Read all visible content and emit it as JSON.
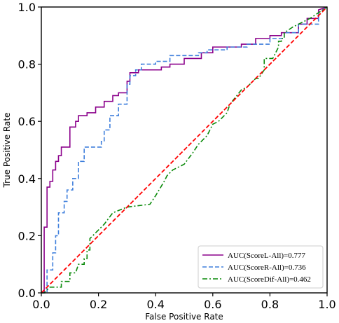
{
  "chart_data": {
    "type": "line",
    "xlabel": "False Positive Rate",
    "ylabel": "True Positive Rate",
    "xlim": [
      0.0,
      1.0
    ],
    "ylim": [
      0.0,
      1.0
    ],
    "xticks": [
      0.0,
      0.2,
      0.4,
      0.6,
      0.8,
      1.0
    ],
    "yticks": [
      0.0,
      0.2,
      0.4,
      0.6,
      0.8,
      1.0
    ],
    "xtick_labels": [
      "0.0",
      "0.2",
      "0.4",
      "0.6",
      "0.8",
      "1.0"
    ],
    "ytick_labels": [
      "0.0",
      "0.2",
      "0.4",
      "0.6",
      "0.8",
      "1.0"
    ],
    "grid": false,
    "legend_position": "lower-right",
    "series": [
      {
        "name": "AUC(ScoreL-All)=0.777",
        "color": "#8b008b",
        "dash": "solid",
        "x": [
          0.0,
          0.01,
          0.01,
          0.02,
          0.02,
          0.03,
          0.03,
          0.04,
          0.04,
          0.05,
          0.05,
          0.06,
          0.06,
          0.07,
          0.07,
          0.1,
          0.1,
          0.12,
          0.12,
          0.13,
          0.13,
          0.16,
          0.16,
          0.19,
          0.19,
          0.22,
          0.22,
          0.25,
          0.25,
          0.27,
          0.27,
          0.3,
          0.3,
          0.31,
          0.31,
          0.34,
          0.34,
          0.42,
          0.42,
          0.45,
          0.45,
          0.5,
          0.5,
          0.56,
          0.56,
          0.6,
          0.6,
          0.7,
          0.7,
          0.75,
          0.75,
          0.8,
          0.8,
          0.84,
          0.84,
          0.9,
          0.9,
          0.93,
          0.93,
          0.97,
          0.97,
          1.0
        ],
        "y": [
          0.0,
          0.0,
          0.23,
          0.23,
          0.37,
          0.37,
          0.39,
          0.39,
          0.43,
          0.43,
          0.46,
          0.46,
          0.48,
          0.48,
          0.51,
          0.51,
          0.58,
          0.58,
          0.6,
          0.6,
          0.62,
          0.62,
          0.63,
          0.63,
          0.65,
          0.65,
          0.67,
          0.67,
          0.69,
          0.69,
          0.7,
          0.7,
          0.74,
          0.74,
          0.77,
          0.77,
          0.78,
          0.78,
          0.79,
          0.79,
          0.8,
          0.8,
          0.82,
          0.82,
          0.84,
          0.84,
          0.86,
          0.86,
          0.87,
          0.87,
          0.89,
          0.89,
          0.9,
          0.9,
          0.91,
          0.91,
          0.94,
          0.94,
          0.96,
          0.96,
          0.99,
          1.0
        ]
      },
      {
        "name": "AUC(ScoreR-All)=0.736",
        "color": "#3f7fdc",
        "dash": "dashed",
        "x": [
          0.0,
          0.02,
          0.02,
          0.04,
          0.04,
          0.05,
          0.05,
          0.06,
          0.06,
          0.08,
          0.08,
          0.09,
          0.09,
          0.11,
          0.11,
          0.13,
          0.13,
          0.15,
          0.15,
          0.21,
          0.21,
          0.22,
          0.22,
          0.24,
          0.24,
          0.27,
          0.27,
          0.3,
          0.3,
          0.31,
          0.31,
          0.33,
          0.33,
          0.35,
          0.35,
          0.4,
          0.4,
          0.45,
          0.45,
          0.55,
          0.55,
          0.58,
          0.58,
          0.65,
          0.65,
          0.72,
          0.72,
          0.8,
          0.8,
          0.85,
          0.85,
          0.9,
          0.9,
          0.97,
          0.97,
          1.0
        ],
        "y": [
          0.0,
          0.0,
          0.08,
          0.08,
          0.14,
          0.14,
          0.2,
          0.2,
          0.28,
          0.28,
          0.32,
          0.32,
          0.36,
          0.36,
          0.4,
          0.4,
          0.46,
          0.46,
          0.51,
          0.51,
          0.53,
          0.53,
          0.57,
          0.57,
          0.62,
          0.62,
          0.66,
          0.66,
          0.73,
          0.73,
          0.76,
          0.76,
          0.78,
          0.78,
          0.8,
          0.8,
          0.81,
          0.81,
          0.83,
          0.83,
          0.84,
          0.84,
          0.85,
          0.85,
          0.86,
          0.86,
          0.87,
          0.87,
          0.89,
          0.89,
          0.91,
          0.91,
          0.94,
          0.94,
          0.98,
          1.0
        ]
      },
      {
        "name": "AUC(ScoreDif-All)=0.462",
        "color": "#0a8a0a",
        "dash": "dashdot",
        "x": [
          0.0,
          0.01,
          0.03,
          0.07,
          0.07,
          0.1,
          0.1,
          0.12,
          0.13,
          0.15,
          0.15,
          0.16,
          0.16,
          0.17,
          0.17,
          0.22,
          0.25,
          0.3,
          0.38,
          0.4,
          0.43,
          0.44,
          0.46,
          0.5,
          0.53,
          0.55,
          0.58,
          0.6,
          0.62,
          0.65,
          0.66,
          0.7,
          0.72,
          0.75,
          0.76,
          0.78,
          0.78,
          0.81,
          0.83,
          0.83,
          0.84,
          0.84,
          0.85,
          0.85,
          0.88,
          0.94,
          0.97,
          1.0
        ],
        "y": [
          0.0,
          0.0,
          0.02,
          0.02,
          0.04,
          0.04,
          0.07,
          0.07,
          0.1,
          0.1,
          0.12,
          0.12,
          0.15,
          0.15,
          0.19,
          0.24,
          0.28,
          0.3,
          0.31,
          0.34,
          0.39,
          0.41,
          0.43,
          0.45,
          0.49,
          0.52,
          0.55,
          0.59,
          0.6,
          0.63,
          0.66,
          0.71,
          0.72,
          0.75,
          0.75,
          0.78,
          0.82,
          0.82,
          0.86,
          0.88,
          0.88,
          0.89,
          0.89,
          0.91,
          0.93,
          0.96,
          0.98,
          1.0
        ]
      },
      {
        "name": "",
        "color": "#ff0000",
        "dash": "dashed",
        "x": [
          0.0,
          1.0
        ],
        "y": [
          0.0,
          1.0
        ]
      }
    ]
  }
}
